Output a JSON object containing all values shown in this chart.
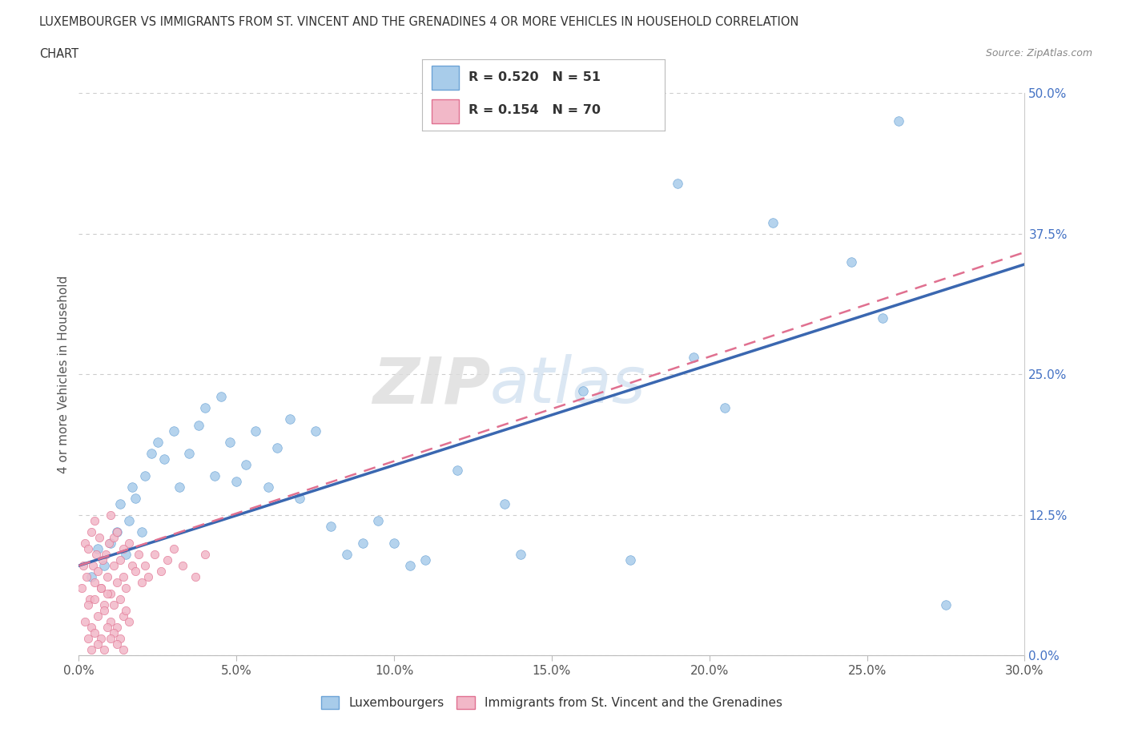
{
  "title_line1": "LUXEMBOURGER VS IMMIGRANTS FROM ST. VINCENT AND THE GRENADINES 4 OR MORE VEHICLES IN HOUSEHOLD CORRELATION",
  "title_line2": "CHART",
  "source_text": "Source: ZipAtlas.com",
  "xmin": 0.0,
  "xmax": 30.0,
  "ymin": 0.0,
  "ymax": 50.0,
  "xticks": [
    0.0,
    5.0,
    10.0,
    15.0,
    20.0,
    25.0,
    30.0
  ],
  "yticks": [
    0.0,
    12.5,
    25.0,
    37.5,
    50.0
  ],
  "legend_r1": "R = 0.520",
  "legend_n1": "N = 51",
  "legend_r2": "R = 0.154",
  "legend_n2": "N = 70",
  "color_blue_fill": "#A8CCEA",
  "color_blue_edge": "#6BA3D6",
  "color_blue_line": "#3A67B0",
  "color_pink_fill": "#F2B8C8",
  "color_pink_edge": "#E07090",
  "color_pink_line": "#E07090",
  "ylabel": "4 or more Vehicles in Household",
  "bottom_legend1": "Luxembourgers",
  "bottom_legend2": "Immigrants from St. Vincent and the Grenadines",
  "blue_x": [
    0.4,
    0.6,
    0.8,
    1.0,
    1.2,
    1.3,
    1.5,
    1.6,
    1.7,
    1.8,
    2.0,
    2.1,
    2.3,
    2.5,
    2.7,
    3.0,
    3.2,
    3.5,
    3.8,
    4.0,
    4.3,
    4.5,
    4.8,
    5.0,
    5.3,
    5.6,
    6.0,
    6.3,
    6.7,
    7.0,
    7.5,
    8.0,
    8.5,
    9.0,
    9.5,
    10.0,
    10.5,
    11.0,
    12.0,
    13.5,
    14.0,
    16.0,
    17.5,
    19.0,
    19.5,
    20.5,
    22.0,
    24.5,
    25.5,
    26.0,
    27.5
  ],
  "blue_y": [
    7.0,
    9.5,
    8.0,
    10.0,
    11.0,
    13.5,
    9.0,
    12.0,
    15.0,
    14.0,
    11.0,
    16.0,
    18.0,
    19.0,
    17.5,
    20.0,
    15.0,
    18.0,
    20.5,
    22.0,
    16.0,
    23.0,
    19.0,
    15.5,
    17.0,
    20.0,
    15.0,
    18.5,
    21.0,
    14.0,
    20.0,
    11.5,
    9.0,
    10.0,
    12.0,
    10.0,
    8.0,
    8.5,
    16.5,
    13.5,
    9.0,
    23.5,
    8.5,
    42.0,
    26.5,
    22.0,
    38.5,
    35.0,
    30.0,
    47.5,
    4.5
  ],
  "pink_x": [
    0.1,
    0.15,
    0.2,
    0.25,
    0.3,
    0.35,
    0.4,
    0.45,
    0.5,
    0.5,
    0.55,
    0.6,
    0.65,
    0.7,
    0.75,
    0.8,
    0.85,
    0.9,
    0.95,
    1.0,
    1.0,
    1.1,
    1.1,
    1.2,
    1.2,
    1.3,
    1.4,
    1.4,
    1.5,
    1.6,
    1.7,
    1.8,
    1.9,
    2.0,
    2.1,
    2.2,
    2.4,
    2.6,
    2.8,
    3.0,
    3.3,
    3.7,
    4.0,
    0.2,
    0.3,
    0.4,
    0.5,
    0.6,
    0.7,
    0.8,
    0.9,
    1.0,
    1.1,
    1.2,
    1.3,
    1.4,
    1.5,
    1.6,
    0.3,
    0.5,
    0.7,
    0.9,
    1.1,
    1.3,
    0.4,
    0.6,
    0.8,
    1.0,
    1.2,
    1.4
  ],
  "pink_y": [
    6.0,
    8.0,
    10.0,
    7.0,
    9.5,
    5.0,
    11.0,
    8.0,
    6.5,
    12.0,
    9.0,
    7.5,
    10.5,
    6.0,
    8.5,
    4.5,
    9.0,
    7.0,
    10.0,
    5.5,
    12.5,
    8.0,
    10.5,
    6.5,
    11.0,
    8.5,
    7.0,
    9.5,
    6.0,
    10.0,
    8.0,
    7.5,
    9.0,
    6.5,
    8.0,
    7.0,
    9.0,
    7.5,
    8.5,
    9.5,
    8.0,
    7.0,
    9.0,
    3.0,
    4.5,
    2.5,
    5.0,
    3.5,
    6.0,
    4.0,
    5.5,
    3.0,
    4.5,
    2.5,
    5.0,
    3.5,
    4.0,
    3.0,
    1.5,
    2.0,
    1.5,
    2.5,
    2.0,
    1.5,
    0.5,
    1.0,
    0.5,
    1.5,
    1.0,
    0.5
  ]
}
